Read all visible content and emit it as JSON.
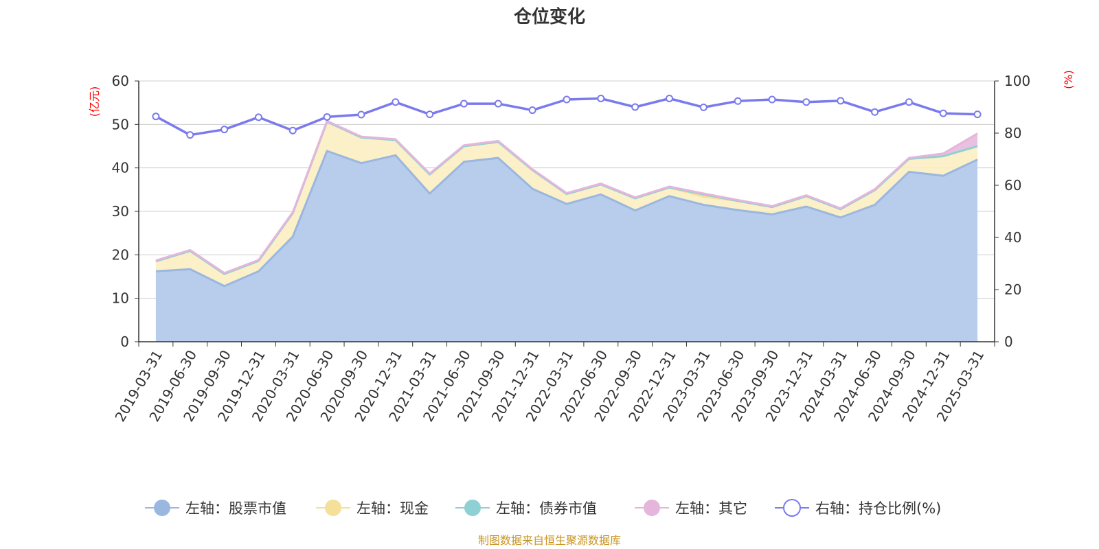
{
  "title": "仓位变化",
  "y_left_unit": "(亿元)",
  "y_right_unit": "(%)",
  "source": "制图数据来自恒生聚源数据库",
  "colors": {
    "stock": "#9ab7e0",
    "stock_fill": "#b8cdeb",
    "cash": "#f5e09a",
    "cash_fill": "#faedbd",
    "bond": "#8fd0d4",
    "other": "#e6b5dc",
    "ratio": "#7a7aee",
    "axis": "#333333",
    "grid": "#cccccc"
  },
  "chart_data": {
    "type": "area",
    "categories": [
      "2019-03-31",
      "2019-06-30",
      "2019-09-30",
      "2019-12-31",
      "2020-03-31",
      "2020-06-30",
      "2020-09-30",
      "2020-12-31",
      "2021-03-31",
      "2021-06-30",
      "2021-09-30",
      "2021-12-31",
      "2022-03-31",
      "2022-06-30",
      "2022-09-30",
      "2022-12-31",
      "2023-03-31",
      "2023-06-30",
      "2023-09-30",
      "2023-12-31",
      "2024-03-31",
      "2024-06-30",
      "2024-09-30",
      "2024-12-31",
      "2025-03-31"
    ],
    "y_left": {
      "ylim": [
        0,
        60
      ],
      "ticks": [
        0,
        10,
        20,
        30,
        40,
        50,
        60
      ]
    },
    "y_right": {
      "ylim": [
        0,
        100
      ],
      "ticks": [
        0,
        20,
        40,
        60,
        80,
        100
      ]
    },
    "stacked": true,
    "grid": true,
    "legend_position": "bottom",
    "series": [
      {
        "name": "左轴：股票市值",
        "axis": "left",
        "key": "stock",
        "values": [
          16.2,
          16.7,
          12.8,
          16.2,
          24.2,
          43.9,
          41.1,
          42.9,
          34.1,
          41.4,
          42.3,
          35.2,
          31.7,
          33.9,
          30.2,
          33.5,
          31.5,
          30.3,
          29.3,
          31.1,
          28.6,
          31.5,
          39.1,
          38.2,
          41.9
        ]
      },
      {
        "name": "左轴：现金",
        "axis": "left",
        "key": "cash",
        "values": [
          2.3,
          4.2,
          2.8,
          2.4,
          5.4,
          6.7,
          5.9,
          3.5,
          4.4,
          3.6,
          3.7,
          4.3,
          2.3,
          2.3,
          2.8,
          2.0,
          1.9,
          2.1,
          1.7,
          2.4,
          1.9,
          3.4,
          3.0,
          4.5,
          3.1
        ]
      },
      {
        "name": "左轴：债券市值",
        "axis": "left",
        "key": "bond",
        "values": [
          0,
          0,
          0,
          0,
          0,
          0,
          0,
          0,
          0,
          0,
          0,
          0,
          0,
          0,
          0,
          0,
          0.5,
          0,
          0,
          0,
          0,
          0,
          0,
          0,
          0
        ]
      },
      {
        "name": "左轴：其它",
        "axis": "left",
        "key": "other",
        "values": [
          0.2,
          0.2,
          0.2,
          0.2,
          0.2,
          0.2,
          0.2,
          0.2,
          0.2,
          0.2,
          0.2,
          0.2,
          0.2,
          0.2,
          0.2,
          0.2,
          0.2,
          0.2,
          0.2,
          0.2,
          0.2,
          0.2,
          0.2,
          0.6,
          2.9
        ]
      },
      {
        "name": "右轴：持仓比例(%)",
        "axis": "right",
        "key": "ratio",
        "values": [
          86.4,
          79.3,
          81.4,
          86.1,
          81.0,
          86.2,
          87.1,
          91.9,
          87.2,
          91.3,
          91.3,
          88.8,
          92.9,
          93.3,
          90.0,
          93.3,
          89.9,
          92.3,
          92.9,
          91.9,
          92.4,
          88.1,
          91.9,
          87.6,
          87.2
        ]
      }
    ]
  }
}
